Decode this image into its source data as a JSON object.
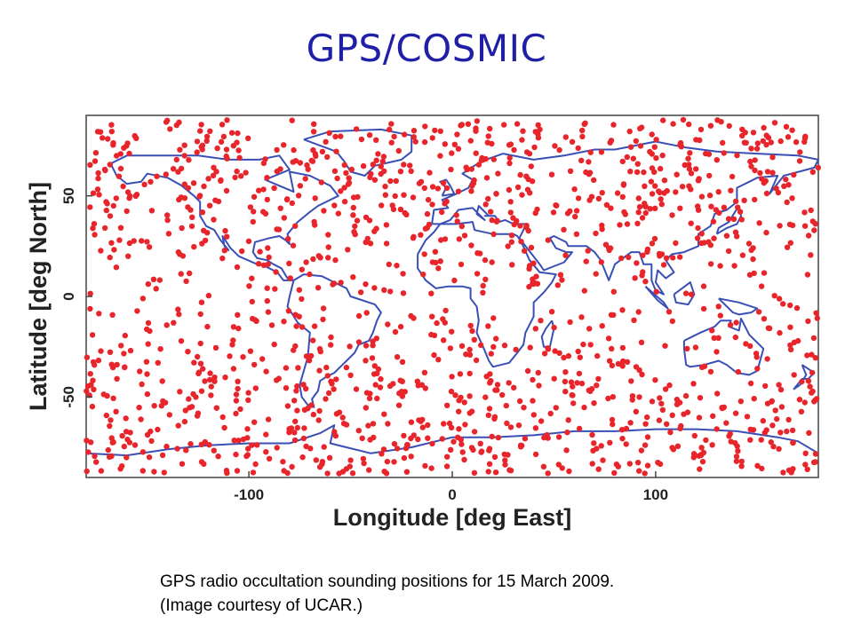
{
  "slide": {
    "title": "GPS/COSMIC",
    "caption_line1": "GPS radio occultation sounding positions for 15 March 2009.",
    "caption_line2": "(Image courtesy of UCAR.)"
  },
  "map": {
    "xlabel": "Longitude [deg East]",
    "ylabel": "Latitude [deg North]",
    "x_ticks": [
      -100,
      0,
      100
    ],
    "y_ticks": [
      50,
      0,
      -50
    ],
    "xlim": [
      -180,
      180
    ],
    "ylim": [
      -90,
      90
    ],
    "point_count": 1500,
    "colors": {
      "points": "#e8252b",
      "coastlines": "#3a4fb5",
      "title": "#1f1fa8"
    }
  }
}
